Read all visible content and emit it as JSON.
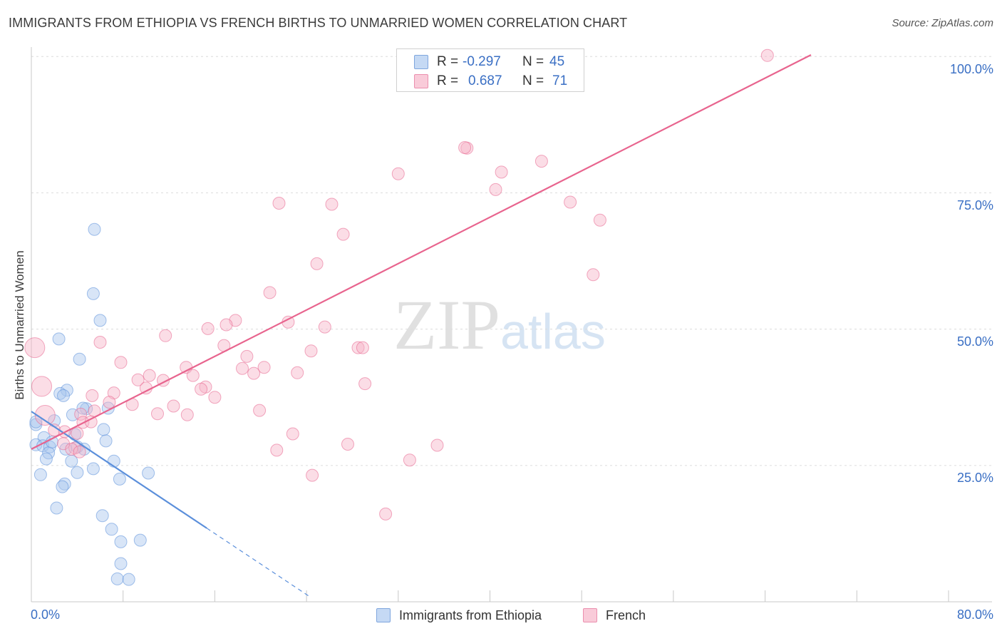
{
  "header": {
    "title": "IMMIGRANTS FROM ETHIOPIA VS FRENCH BIRTHS TO UNMARRIED WOMEN CORRELATION CHART",
    "source": "Source: ZipAtlas.com"
  },
  "watermark": {
    "zip": "ZIP",
    "atlas": "atlas"
  },
  "stats_legend": [
    {
      "r_label": "R =",
      "r_value": "-0.297",
      "n_label": "N =",
      "n_value": "45",
      "color": "#a9c6ee"
    },
    {
      "r_label": "R =",
      "r_value": "0.687",
      "n_label": "N =",
      "n_value": "71",
      "color": "#f6b3c8"
    }
  ],
  "series_legend": [
    {
      "name": "Immigrants from Ethiopia",
      "color": "#a9c6ee"
    },
    {
      "name": "French",
      "color": "#f6b3c8"
    }
  ],
  "chart_data": {
    "type": "scatter",
    "title": "IMMIGRANTS FROM ETHIOPIA VS FRENCH BIRTHS TO UNMARRIED WOMEN CORRELATION CHART",
    "xlabel": "",
    "ylabel": "Births to Unmarried Women",
    "xlim": [
      0,
      80
    ],
    "ylim": [
      0,
      100
    ],
    "x_tick_labels": [
      "0.0%",
      "80.0%"
    ],
    "y_ticks": [
      25,
      50,
      75,
      100
    ],
    "y_tick_labels": [
      "25.0%",
      "50.0%",
      "75.0%",
      "100.0%"
    ],
    "grid": true,
    "legend": "bottom-center",
    "series": [
      {
        "name": "Immigrants from Ethiopia",
        "color": "#5b8fdb",
        "fill": "#a9c6ee",
        "trend": {
          "x0": 0,
          "y0": 34.9,
          "x1": 15.3,
          "y1": 13.5,
          "dash_to_x": 24.4
        },
        "points": [
          [
            5.5,
            68.3
          ],
          [
            5.4,
            56.5
          ],
          [
            6.0,
            51.6
          ],
          [
            2.4,
            48.2
          ],
          [
            4.2,
            44.5
          ],
          [
            3.1,
            38.8
          ],
          [
            2.5,
            38.2
          ],
          [
            2.8,
            37.8
          ],
          [
            4.8,
            35.4
          ],
          [
            6.7,
            35.5
          ],
          [
            3.6,
            34.3
          ],
          [
            0.4,
            32.5
          ],
          [
            2.0,
            33.2
          ],
          [
            6.3,
            31.6
          ],
          [
            1.1,
            30.1
          ],
          [
            6.5,
            29.5
          ],
          [
            3.8,
            30.7
          ],
          [
            0.4,
            28.8
          ],
          [
            1.0,
            28.6
          ],
          [
            1.6,
            28.4
          ],
          [
            4.0,
            28.4
          ],
          [
            4.6,
            28.0
          ],
          [
            1.5,
            27.3
          ],
          [
            3.5,
            25.8
          ],
          [
            1.3,
            26.2
          ],
          [
            7.2,
            25.8
          ],
          [
            5.4,
            24.4
          ],
          [
            0.8,
            23.3
          ],
          [
            2.9,
            21.6
          ],
          [
            4.0,
            23.7
          ],
          [
            10.2,
            23.6
          ],
          [
            7.7,
            22.5
          ],
          [
            2.7,
            21.1
          ],
          [
            2.2,
            17.2
          ],
          [
            6.2,
            15.8
          ],
          [
            7.0,
            13.3
          ],
          [
            9.5,
            11.3
          ],
          [
            7.8,
            11.0
          ],
          [
            7.8,
            7.0
          ],
          [
            7.5,
            4.2
          ],
          [
            8.5,
            4.1
          ],
          [
            0.4,
            33.0
          ],
          [
            1.8,
            29.3
          ],
          [
            3.0,
            28.0
          ],
          [
            4.5,
            35.5
          ]
        ]
      },
      {
        "name": "French",
        "color": "#e8648e",
        "fill": "#f6b3c8",
        "trend": {
          "x0": 0,
          "y0": 28.0,
          "x1": 68.0,
          "y1": 100.3
        },
        "points": [
          [
            64.2,
            100.2
          ],
          [
            38.0,
            83.2
          ],
          [
            37.8,
            83.3
          ],
          [
            44.5,
            80.8
          ],
          [
            32.0,
            78.5
          ],
          [
            41.0,
            78.8
          ],
          [
            40.5,
            75.6
          ],
          [
            21.6,
            73.1
          ],
          [
            26.2,
            72.9
          ],
          [
            47.0,
            73.3
          ],
          [
            49.6,
            70.0
          ],
          [
            27.2,
            67.4
          ],
          [
            24.9,
            62.0
          ],
          [
            49.0,
            60.0
          ],
          [
            20.8,
            56.7
          ],
          [
            17.8,
            51.6
          ],
          [
            22.4,
            51.3
          ],
          [
            17.0,
            50.8
          ],
          [
            15.4,
            50.1
          ],
          [
            25.6,
            50.4
          ],
          [
            11.7,
            48.8
          ],
          [
            6.0,
            47.6
          ],
          [
            0.3,
            46.6
          ],
          [
            28.5,
            46.6
          ],
          [
            28.9,
            46.6
          ],
          [
            16.8,
            47.0
          ],
          [
            24.4,
            46.0
          ],
          [
            18.8,
            45.0
          ],
          [
            7.8,
            43.9
          ],
          [
            13.5,
            43.0
          ],
          [
            18.4,
            42.8
          ],
          [
            20.3,
            43.0
          ],
          [
            23.2,
            42.0
          ],
          [
            19.4,
            41.9
          ],
          [
            14.1,
            41.5
          ],
          [
            10.3,
            41.5
          ],
          [
            9.3,
            40.7
          ],
          [
            11.5,
            40.6
          ],
          [
            29.1,
            40.0
          ],
          [
            0.9,
            39.5
          ],
          [
            10.0,
            39.2
          ],
          [
            15.2,
            39.4
          ],
          [
            14.8,
            39.0
          ],
          [
            5.3,
            37.8
          ],
          [
            7.2,
            38.3
          ],
          [
            16.0,
            37.5
          ],
          [
            6.8,
            36.6
          ],
          [
            12.4,
            35.9
          ],
          [
            8.8,
            36.2
          ],
          [
            5.5,
            35.0
          ],
          [
            11.0,
            34.5
          ],
          [
            13.6,
            34.3
          ],
          [
            19.9,
            35.1
          ],
          [
            1.2,
            34.2
          ],
          [
            4.3,
            34.4
          ],
          [
            4.5,
            32.9
          ],
          [
            5.2,
            33.0
          ],
          [
            2.0,
            31.5
          ],
          [
            2.9,
            31.2
          ],
          [
            4.0,
            30.9
          ],
          [
            22.8,
            30.8
          ],
          [
            2.8,
            29.0
          ],
          [
            3.8,
            28.2
          ],
          [
            35.4,
            28.7
          ],
          [
            27.6,
            28.9
          ],
          [
            3.5,
            28.0
          ],
          [
            21.4,
            27.8
          ],
          [
            4.2,
            27.5
          ],
          [
            24.5,
            23.2
          ],
          [
            30.9,
            16.1
          ],
          [
            33.0,
            26.0
          ]
        ]
      }
    ]
  }
}
